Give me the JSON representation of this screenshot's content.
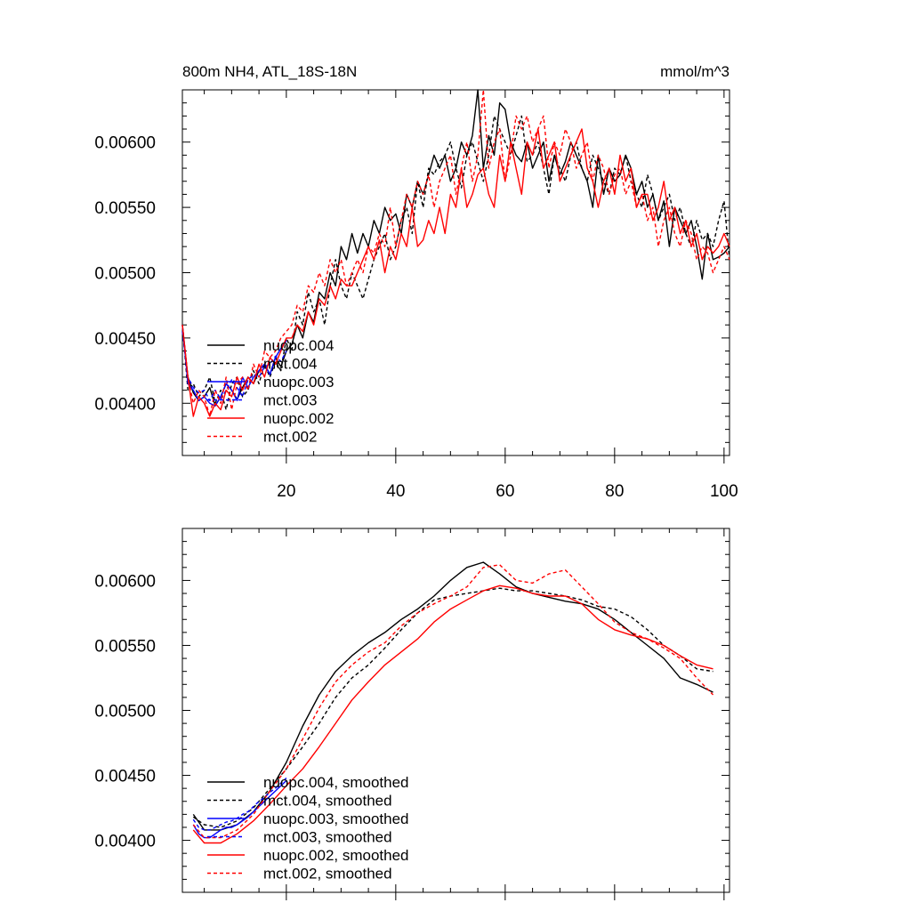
{
  "chart_data": [
    {
      "type": "line",
      "title": "800m NH4, ATL_18S-18N",
      "units": "mmol/m^3",
      "xlim": [
        1,
        101
      ],
      "ylim": [
        0.0036,
        0.0064
      ],
      "xticks": [
        20,
        40,
        60,
        80,
        100
      ],
      "xtick_labels": [
        "20",
        "40",
        "60",
        "80",
        "100"
      ],
      "yticks": [
        0.004,
        0.0045,
        0.005,
        0.0055,
        0.006
      ],
      "ytick_labels": [
        "0.00400",
        "0.00450",
        "0.00500",
        "0.00550",
        "0.00600"
      ],
      "legend_position": "lower-left",
      "series": [
        {
          "name": "nuopc.004",
          "color": "#000000",
          "dash": "solid",
          "x_start": 1,
          "values": [
            0.0046,
            0.0042,
            0.00408,
            0.00402,
            0.00405,
            0.00412,
            0.00398,
            0.00405,
            0.00415,
            0.0041,
            0.00403,
            0.00412,
            0.0042,
            0.00415,
            0.00425,
            0.0043,
            0.00422,
            0.00435,
            0.00428,
            0.0044,
            0.00445,
            0.0046,
            0.0045,
            0.0047,
            0.00462,
            0.00485,
            0.0048,
            0.005,
            0.0049,
            0.0052,
            0.0051,
            0.0053,
            0.00515,
            0.0053,
            0.0052,
            0.0054,
            0.0053,
            0.0055,
            0.0054,
            0.00545,
            0.0053,
            0.0056,
            0.0055,
            0.0057,
            0.0056,
            0.00575,
            0.0059,
            0.0058,
            0.0059,
            0.0057,
            0.0058,
            0.006,
            0.0059,
            0.00605,
            0.0064,
            0.0058,
            0.00605,
            0.0059,
            0.0063,
            0.00625,
            0.006,
            0.0059,
            0.00585,
            0.006,
            0.0058,
            0.0059,
            0.006,
            0.0057,
            0.0059,
            0.00575,
            0.00585,
            0.006,
            0.0059,
            0.0058,
            0.0057,
            0.0055,
            0.0059,
            0.0056,
            0.0058,
            0.0057,
            0.00575,
            0.0059,
            0.0058,
            0.0056,
            0.0057,
            0.0055,
            0.0056,
            0.0054,
            0.00555,
            0.0052,
            0.0055,
            0.0054,
            0.0053,
            0.0054,
            0.0052,
            0.00495,
            0.0053,
            0.0051,
            0.00512,
            0.00515,
            0.0052
          ]
        },
        {
          "name": "mct.004",
          "color": "#000000",
          "dash": "dashed",
          "x_start": 1,
          "values": [
            0.0046,
            0.0041,
            0.00415,
            0.00405,
            0.0041,
            0.0042,
            0.004,
            0.0041,
            0.00395,
            0.00415,
            0.0042,
            0.00405,
            0.0041,
            0.00425,
            0.00415,
            0.0043,
            0.0042,
            0.00432,
            0.00425,
            0.0045,
            0.0044,
            0.0047,
            0.0046,
            0.00485,
            0.0047,
            0.0048,
            0.0046,
            0.0049,
            0.0051,
            0.0049,
            0.0048,
            0.005,
            0.0049,
            0.0048,
            0.00495,
            0.0051,
            0.0052,
            0.0053,
            0.0051,
            0.0052,
            0.0054,
            0.0055,
            0.0053,
            0.0057,
            0.0055,
            0.0058,
            0.00575,
            0.00585,
            0.0059,
            0.006,
            0.0058,
            0.00565,
            0.0059,
            0.006,
            0.00585,
            0.0057,
            0.0059,
            0.0062,
            0.0061,
            0.006,
            0.0059,
            0.00605,
            0.0062,
            0.00585,
            0.0059,
            0.006,
            0.0058,
            0.0056,
            0.0059,
            0.0058,
            0.0057,
            0.0059,
            0.006,
            0.0058,
            0.0057,
            0.0059,
            0.0058,
            0.0057,
            0.0056,
            0.0058,
            0.00575,
            0.0059,
            0.0057,
            0.0056,
            0.0055,
            0.00575,
            0.0056,
            0.0054,
            0.0055,
            0.0056,
            0.0054,
            0.0055,
            0.0053,
            0.0052,
            0.0054,
            0.00525,
            0.0053,
            0.0052,
            0.0054,
            0.00555,
            0.0051
          ]
        },
        {
          "name": "nuopc.003",
          "color": "#0000ff",
          "dash": "solid",
          "x_start": 1,
          "values": [
            0.0046,
            0.00415,
            0.0041,
            0.00402,
            0.00405,
            0.004,
            0.00398,
            0.00405,
            0.00415,
            0.0041,
            0.00402,
            0.0042,
            0.00412,
            0.0042,
            0.00425,
            0.0043,
            0.00422,
            0.00435,
            0.00442,
            0.00448
          ]
        },
        {
          "name": "mct.003",
          "color": "#0000ff",
          "dash": "dashed",
          "x_start": 1,
          "values": [
            0.00455,
            0.0042,
            0.00412,
            0.00408,
            0.0041,
            0.00402,
            0.0041,
            0.00403,
            0.0041,
            0.00418,
            0.00412,
            0.00405,
            0.00418,
            0.00422,
            0.0042,
            0.00428,
            0.0043,
            0.00436,
            0.00432,
            0.0044
          ]
        },
        {
          "name": "nuopc.002",
          "color": "#ff0000",
          "dash": "solid",
          "x_start": 1,
          "values": [
            0.0046,
            0.0042,
            0.0039,
            0.00405,
            0.004,
            0.0039,
            0.004,
            0.00395,
            0.0041,
            0.00405,
            0.0042,
            0.0041,
            0.0042,
            0.00415,
            0.0043,
            0.0042,
            0.00435,
            0.0043,
            0.0044,
            0.0045,
            0.0045,
            0.0046,
            0.00455,
            0.0047,
            0.0046,
            0.0048,
            0.00475,
            0.0049,
            0.0048,
            0.00495,
            0.0049,
            0.0049,
            0.005,
            0.0051,
            0.0052,
            0.0051,
            0.00525,
            0.005,
            0.0052,
            0.0051,
            0.0053,
            0.0052,
            0.0055,
            0.0052,
            0.00525,
            0.0054,
            0.0053,
            0.0055,
            0.0053,
            0.0056,
            0.0055,
            0.0058,
            0.0055,
            0.0056,
            0.00575,
            0.0058,
            0.0056,
            0.0055,
            0.0059,
            0.0057,
            0.006,
            0.0058,
            0.0056,
            0.006,
            0.0059,
            0.0061,
            0.0058,
            0.0059,
            0.006,
            0.0057,
            0.0058,
            0.0059,
            0.006,
            0.0061,
            0.0058,
            0.0057,
            0.0055,
            0.0057,
            0.0058,
            0.0056,
            0.0059,
            0.0057,
            0.0058,
            0.0055,
            0.0056,
            0.0056,
            0.0054,
            0.0055,
            0.0057,
            0.0054,
            0.0055,
            0.0053,
            0.0054,
            0.0052,
            0.0053,
            0.0051,
            0.0052,
            0.00515,
            0.0052,
            0.0053,
            0.0052
          ]
        },
        {
          "name": "mct.002",
          "color": "#ff0000",
          "dash": "dashed",
          "x_start": 1,
          "values": [
            0.0046,
            0.0042,
            0.004,
            0.0041,
            0.00405,
            0.0039,
            0.0041,
            0.004,
            0.0042,
            0.00395,
            0.00415,
            0.0042,
            0.0041,
            0.0043,
            0.0042,
            0.0044,
            0.00435,
            0.0044,
            0.0045,
            0.00455,
            0.0046,
            0.00475,
            0.0047,
            0.0049,
            0.00485,
            0.005,
            0.0049,
            0.0051,
            0.005,
            0.0051,
            0.0049,
            0.005,
            0.0051,
            0.005,
            0.0052,
            0.00515,
            0.0053,
            0.0052,
            0.0055,
            0.0052,
            0.0054,
            0.0056,
            0.0055,
            0.0057,
            0.0056,
            0.00575,
            0.0055,
            0.0057,
            0.0058,
            0.0059,
            0.0056,
            0.0058,
            0.006,
            0.0057,
            0.0059,
            0.0064,
            0.0058,
            0.006,
            0.0061,
            0.0057,
            0.0059,
            0.0062,
            0.0061,
            0.0062,
            0.006,
            0.0061,
            0.0062,
            0.0058,
            0.006,
            0.0059,
            0.0061,
            0.006,
            0.0058,
            0.0059,
            0.006,
            0.0057,
            0.0059,
            0.0058,
            0.0056,
            0.00575,
            0.0058,
            0.0056,
            0.0057,
            0.0055,
            0.0056,
            0.0054,
            0.0055,
            0.0052,
            0.0054,
            0.0055,
            0.0053,
            0.0052,
            0.0054,
            0.0053,
            0.0051,
            0.0052,
            0.00515,
            0.005,
            0.0051,
            0.0052,
            0.0051
          ]
        }
      ]
    },
    {
      "type": "line",
      "xlim": [
        1,
        101
      ],
      "ylim": [
        0.0036,
        0.0064
      ],
      "xticks": [
        20,
        40,
        60,
        80,
        100
      ],
      "yticks": [
        0.004,
        0.0045,
        0.005,
        0.0055,
        0.006
      ],
      "ytick_labels": [
        "0.00400",
        "0.00450",
        "0.00500",
        "0.00550",
        "0.00600"
      ],
      "legend_position": "lower-left",
      "series": [
        {
          "name": "nuopc.004, smoothed",
          "color": "#000000",
          "dash": "solid",
          "x": [
            3,
            5,
            8,
            11,
            14,
            17,
            20,
            23,
            26,
            29,
            32,
            35,
            38,
            41,
            44,
            47,
            50,
            53,
            56,
            59,
            62,
            65,
            68,
            71,
            74,
            77,
            80,
            83,
            86,
            89,
            92,
            95,
            98
          ],
          "values": [
            0.0042,
            0.00408,
            0.00408,
            0.00412,
            0.00422,
            0.00438,
            0.0046,
            0.00488,
            0.00512,
            0.0053,
            0.00542,
            0.00552,
            0.0056,
            0.0057,
            0.00578,
            0.00588,
            0.006,
            0.0061,
            0.00614,
            0.00605,
            0.00595,
            0.0059,
            0.00587,
            0.00584,
            0.00582,
            0.00578,
            0.0057,
            0.0056,
            0.0055,
            0.0054,
            0.00525,
            0.0052,
            0.00514
          ]
        },
        {
          "name": "mct.004, smoothed",
          "color": "#000000",
          "dash": "dashed",
          "x": [
            3,
            5,
            8,
            11,
            14,
            17,
            20,
            23,
            26,
            29,
            32,
            35,
            38,
            41,
            44,
            47,
            50,
            53,
            56,
            59,
            62,
            65,
            68,
            71,
            74,
            77,
            80,
            83,
            86,
            89,
            92,
            95,
            98
          ],
          "values": [
            0.00418,
            0.00412,
            0.0041,
            0.00415,
            0.00425,
            0.0044,
            0.00455,
            0.00472,
            0.0049,
            0.0051,
            0.00525,
            0.00535,
            0.00548,
            0.00562,
            0.00575,
            0.00585,
            0.00588,
            0.0059,
            0.00592,
            0.00594,
            0.00592,
            0.00592,
            0.0059,
            0.00588,
            0.00585,
            0.0058,
            0.00578,
            0.00572,
            0.00562,
            0.0055,
            0.00542,
            0.00532,
            0.0053
          ]
        },
        {
          "name": "nuopc.003, smoothed",
          "color": "#0000ff",
          "dash": "solid",
          "x": [
            3,
            4,
            5,
            6,
            7,
            8,
            9,
            10,
            11,
            12,
            13,
            14,
            15,
            16,
            17,
            18,
            19,
            20
          ],
          "values": [
            0.00412,
            0.00405,
            0.00402,
            0.00402,
            0.00405,
            0.00408,
            0.0041,
            0.0041,
            0.00412,
            0.00415,
            0.00418,
            0.00422,
            0.00426,
            0.0043,
            0.00434,
            0.00438,
            0.00442,
            0.00446
          ]
        },
        {
          "name": "mct.003, smoothed",
          "color": "#0000ff",
          "dash": "dashed",
          "x": [
            3,
            4,
            5,
            6,
            7,
            8,
            9,
            10,
            11,
            12,
            13,
            14,
            15,
            16,
            17,
            18,
            19,
            20
          ],
          "values": [
            0.00416,
            0.0041,
            0.00408,
            0.00408,
            0.0041,
            0.00412,
            0.00414,
            0.00415,
            0.00417,
            0.0042,
            0.00422,
            0.00426,
            0.0043,
            0.00433,
            0.00437,
            0.0044,
            0.00444,
            0.00448
          ]
        },
        {
          "name": "nuopc.002, smoothed",
          "color": "#ff0000",
          "dash": "solid",
          "x": [
            3,
            5,
            8,
            11,
            14,
            17,
            20,
            23,
            26,
            29,
            32,
            35,
            38,
            41,
            44,
            47,
            50,
            53,
            56,
            59,
            62,
            65,
            68,
            71,
            74,
            77,
            80,
            83,
            86,
            89,
            92,
            95,
            98
          ],
          "values": [
            0.00408,
            0.00398,
            0.00398,
            0.00405,
            0.00415,
            0.00428,
            0.00442,
            0.00455,
            0.00472,
            0.0049,
            0.00508,
            0.00522,
            0.00535,
            0.00545,
            0.00555,
            0.00568,
            0.00578,
            0.00585,
            0.00592,
            0.00596,
            0.00594,
            0.0059,
            0.00588,
            0.00588,
            0.00582,
            0.0057,
            0.00562,
            0.00558,
            0.00555,
            0.0055,
            0.00542,
            0.00535,
            0.00532
          ]
        },
        {
          "name": "mct.002, smoothed",
          "color": "#ff0000",
          "dash": "dashed",
          "x": [
            3,
            5,
            8,
            11,
            14,
            17,
            20,
            23,
            26,
            29,
            32,
            35,
            38,
            41,
            44,
            47,
            50,
            53,
            56,
            59,
            62,
            65,
            68,
            71,
            74,
            77,
            80,
            83,
            86,
            89,
            92,
            95,
            98
          ],
          "values": [
            0.00412,
            0.00402,
            0.00402,
            0.00408,
            0.0042,
            0.00438,
            0.00455,
            0.00478,
            0.00502,
            0.00522,
            0.00535,
            0.00545,
            0.00552,
            0.00565,
            0.00575,
            0.00582,
            0.00588,
            0.00595,
            0.0061,
            0.00612,
            0.006,
            0.00598,
            0.00605,
            0.00608,
            0.00595,
            0.00582,
            0.00568,
            0.0056,
            0.00555,
            0.00548,
            0.0054,
            0.00525,
            0.00512
          ]
        }
      ]
    }
  ]
}
